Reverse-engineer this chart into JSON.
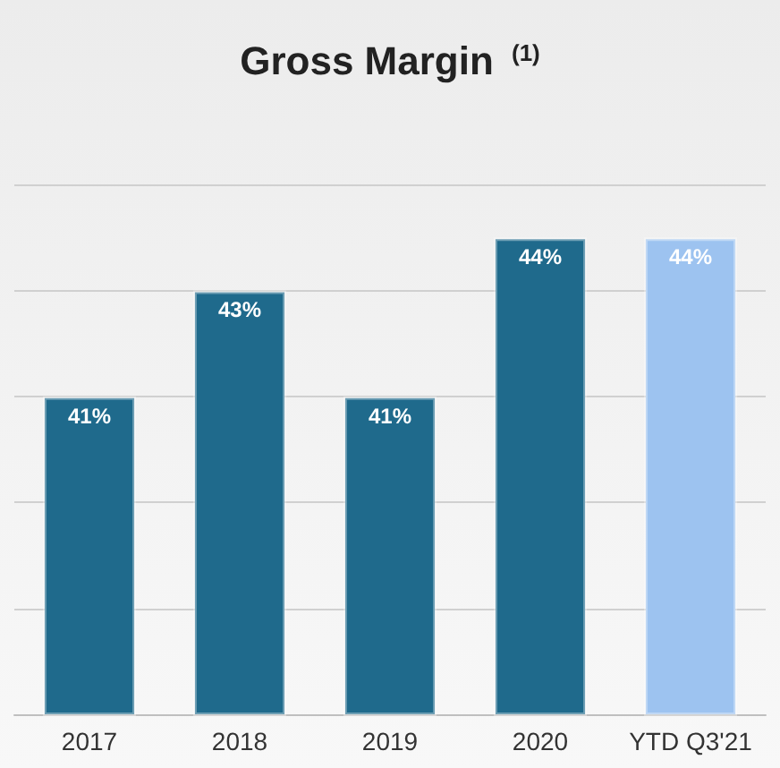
{
  "chart_data": {
    "type": "bar",
    "title": "Gross Margin $^{(1)}$",
    "categories": [
      "2017",
      "2018",
      "2019",
      "2020",
      "YTD Q3'21"
    ],
    "values": [
      41,
      43,
      41,
      44,
      44
    ],
    "colors": [
      "#1f6a8c",
      "#1f6a8c",
      "#1f6a8c",
      "#1f6a8c",
      "#9dc3f0"
    ],
    "data_labels": true,
    "value_labels": [
      "41%",
      "43%",
      "41%",
      "44%",
      "44%"
    ],
    "ylim": [
      35,
      45
    ],
    "yticks": [
      {
        "value": 35,
        "label": null
      },
      {
        "value": 37,
        "label": null
      },
      {
        "value": 39,
        "label": null
      },
      {
        "value": 41,
        "label": null
      },
      {
        "value": 43,
        "label": null
      },
      {
        "value": 45,
        "label": null
      }
    ],
    "grid": "y",
    "tick_labels": "x"
  }
}
